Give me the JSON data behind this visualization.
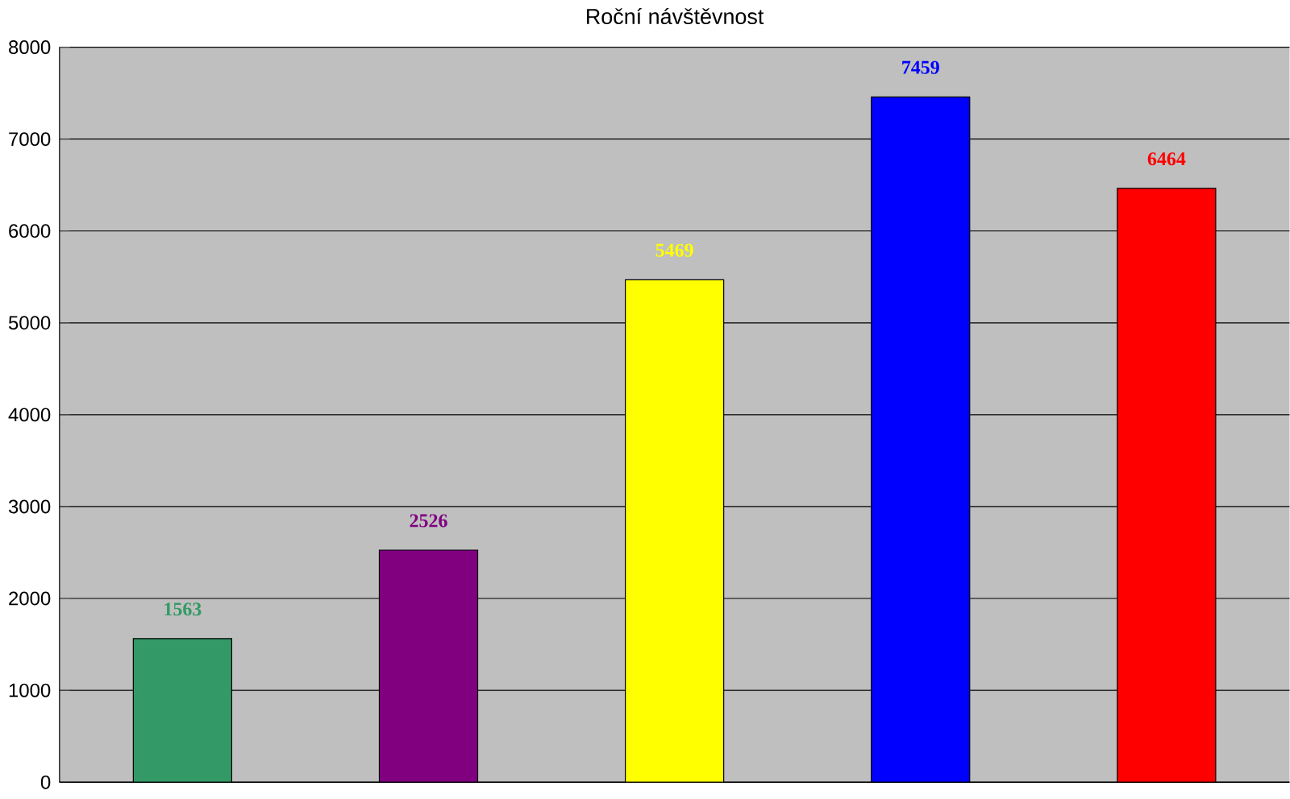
{
  "chart_data": {
    "type": "bar",
    "title": "Roční návštěvnost",
    "categories": [
      null,
      null,
      null,
      null,
      null
    ],
    "values": [
      1563,
      2526,
      5469,
      7459,
      6464
    ],
    "colors": [
      "#339966",
      "#800080",
      "#ffff00",
      "#0000ff",
      "#ff0000"
    ],
    "ylim": [
      0,
      8000
    ],
    "yticks": [
      0,
      1000,
      2000,
      3000,
      4000,
      5000,
      6000,
      7000,
      8000
    ],
    "grid": "y",
    "data_labels": true,
    "tick_labels": "y"
  }
}
